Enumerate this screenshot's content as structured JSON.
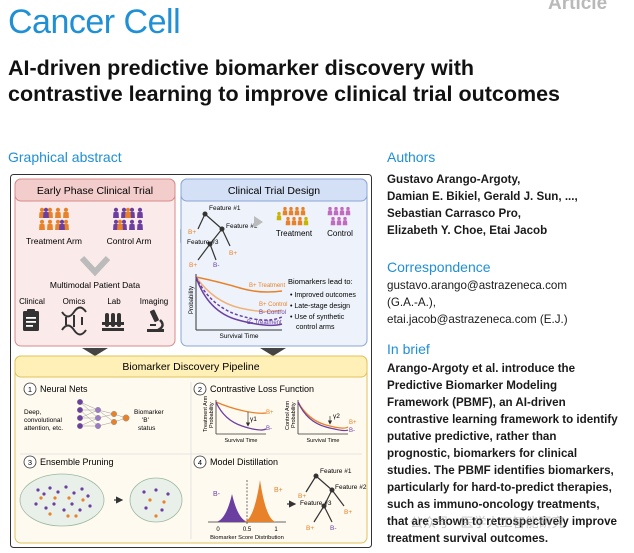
{
  "journal": "Cancer Cell",
  "article_type": "Article",
  "title": "AI-driven predictive biomarker discovery with contrastive learning to improve clinical trial outcomes",
  "graphical_abstract_heading": "Graphical abstract",
  "abstract": {
    "early_phase": {
      "title": "Early Phase Clinical Trial",
      "treatment_arm": "Treatment Arm",
      "control_arm": "Control Arm",
      "multimodal": "Multimodal Patient Data",
      "modalities": [
        "Clinical",
        "Omics",
        "Lab",
        "Imaging"
      ]
    },
    "trial_design": {
      "title": "Clinical Trial Design",
      "features": [
        "Feature #1",
        "Feature #2",
        "Feature #3"
      ],
      "b_plus": "B+",
      "b_minus": "B-",
      "treatment": "Treatment",
      "control": "Control",
      "km_curves": [
        "B+ Treatment",
        "B+ Control",
        "B- Control",
        "B- Treatment"
      ],
      "probability": "Probability",
      "survival_time": "Survival Time",
      "biomarkers_lead_to": "Biomarkers lead to:",
      "bullets": [
        "Improved outcomes",
        "Late-stage design",
        "Use of synthetic",
        "control arms"
      ]
    },
    "pipeline": {
      "title": "Biomarker Discovery Pipeline",
      "steps": [
        {
          "num": "1",
          "title": "Neural Nets",
          "desc": [
            "Deep,",
            "convolutional",
            "attention, etc."
          ],
          "output": [
            "Biomarker",
            "'B'",
            "status"
          ]
        },
        {
          "num": "2",
          "title": "Contrastive Loss Function",
          "treatment_arm": "Treatment Arm",
          "control_arm": "Control Arm",
          "probability": "Probability",
          "survival_time": "Survival Time",
          "gamma1": "γ1",
          "gamma2": "γ2"
        },
        {
          "num": "3",
          "title": "Ensemble Pruning"
        },
        {
          "num": "4",
          "title": "Model Distillation",
          "score_dist": "Biomarker Score Distribution",
          "ticks": [
            "0",
            "0.5",
            "1"
          ]
        }
      ]
    }
  },
  "sidebar": {
    "authors_heading": "Authors",
    "authors": [
      "Gustavo Arango-Argoty,",
      "Damian E. Bikiel, Gerald J. Sun, ...,",
      "Sebastian Carrasco Pro,",
      "Elizabeth Y. Choe, Etai Jacob"
    ],
    "correspondence_heading": "Correspondence",
    "correspondence": [
      "gustavo.arango@astrazeneca.com",
      "(G.A.-A.),",
      "etai.jacob@astrazeneca.com (E.J.)"
    ],
    "brief_heading": "In brief",
    "brief": [
      "Arango-Argoty et al. introduce the",
      "Predictive Biomarker Modeling",
      "Framework (PBMF), an AI-driven",
      "contrastive learning framework to identify",
      "putative predictive, rather than",
      "prognostic, biomarkers for clinical",
      "studies. The PBMF identifies biomarkers,",
      "particularly for hard-to-predict therapies,",
      "such as immuno-oncology treatments,",
      "that are shown to retrospectively improve",
      "treatment survival outcomes."
    ]
  },
  "watermark": "公众号 · 医学人工智能研究",
  "colors": {
    "journal_blue": "#1f8fd6",
    "treatment_orange": "#e8822a",
    "control_purple": "#6b3fa0",
    "pipeline_yellow": "#fff2c2",
    "early_pink": "#f7dede",
    "design_blue": "#dfe8f7"
  }
}
